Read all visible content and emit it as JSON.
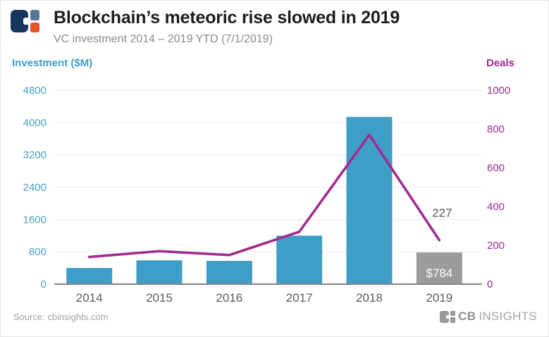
{
  "header": {
    "title": "Blockchain’s meteoric rise slowed in 2019",
    "subtitle": "VC investment 2014 – 2019 YTD (7/1/2019)"
  },
  "footer": {
    "source": "Source: cbinsights.com",
    "brand_cb": "CB",
    "brand_insights": "INSIGHTS"
  },
  "colors": {
    "bar_blue": "#3f9ec8",
    "bar_gray": "#9c9c9c",
    "line_magenta": "#a22b8d",
    "left_axis_text": "#45a1c9",
    "right_axis_text": "#a22b8d",
    "grid": "#e9e9e9",
    "baseline": "#828282",
    "xtick_text": "#5c5c5c",
    "annotation_text": "#5c5c5c",
    "bar_label_text": "#ffffff"
  },
  "chart_data": {
    "type": "bar+line combo",
    "title": "Blockchain’s meteoric rise slowed in 2019",
    "subtitle": "VC investment 2014 – 2019 YTD (7/1/2019)",
    "categories": [
      "2014",
      "2015",
      "2016",
      "2017",
      "2018",
      "2019"
    ],
    "series": [
      {
        "name": "Investment ($M)",
        "type": "bar",
        "axis": "left",
        "values": [
          400,
          590,
          575,
          1200,
          4140,
          784
        ]
      },
      {
        "name": "Deals",
        "type": "line",
        "axis": "right",
        "values": [
          140,
          170,
          150,
          270,
          770,
          227
        ]
      }
    ],
    "left_axis": {
      "label": "Investment ($M)",
      "ticks": [
        0,
        800,
        1600,
        2400,
        3200,
        4000,
        4800
      ],
      "max": 4800
    },
    "right_axis": {
      "label": "Deals",
      "ticks": [
        0,
        200,
        400,
        600,
        800,
        1000
      ],
      "max": 1000
    },
    "annotations": [
      {
        "text": "227",
        "series": "Deals",
        "category": "2019",
        "placement": "above-line-end"
      },
      {
        "text": "$784",
        "series": "Investment ($M)",
        "category": "2019",
        "placement": "inside-bar-bottom"
      }
    ],
    "highlight_last_bar": true,
    "grid": "horizontal-only",
    "legend": "none"
  }
}
